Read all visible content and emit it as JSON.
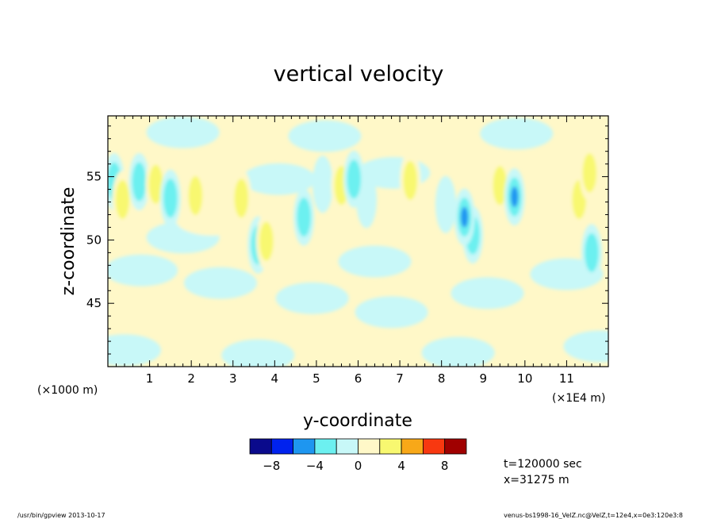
{
  "chart_data": {
    "type": "heatmap",
    "title": "vertical velocity",
    "xlabel": "y-coordinate",
    "ylabel": "z-coordinate",
    "x_scale_label": "(×1000 m)",
    "x_unit_label": "(×1E4 m)",
    "xlim": [
      0,
      12
    ],
    "ylim": [
      40,
      59.8
    ],
    "x_ticks": [
      1,
      2,
      3,
      4,
      5,
      6,
      7,
      8,
      9,
      10,
      11
    ],
    "y_ticks": [
      45,
      50,
      55
    ],
    "grid": false,
    "colorbar": {
      "levels": [
        -10,
        -8,
        -6,
        -4,
        -2,
        0,
        2,
        4,
        6,
        8,
        10
      ],
      "tick_labels": [
        "−8",
        "−4",
        "0",
        "4",
        "8"
      ],
      "tick_values": [
        -8,
        -4,
        0,
        4,
        8
      ],
      "colors": [
        "#0a0a8c",
        "#0022ee",
        "#1e96f0",
        "#6cf0f0",
        "#c8f8f8",
        "#fff8c8",
        "#f8f870",
        "#f8a818",
        "#f83810",
        "#a00000"
      ]
    },
    "annotations": [
      "t=120000 sec",
      "x=31275 m"
    ],
    "features": [
      {
        "y": 0.15,
        "z": 54.6,
        "value": -5
      },
      {
        "y": 0.35,
        "z": 53.2,
        "value": 5
      },
      {
        "y": 0.55,
        "z": 53.6,
        "value": 3
      },
      {
        "y": 0.75,
        "z": 54.6,
        "value": -5
      },
      {
        "y": 1.15,
        "z": 54.4,
        "value": 5
      },
      {
        "y": 1.5,
        "z": 53.3,
        "value": -5
      },
      {
        "y": 1.8,
        "z": 50.2,
        "value": -2
      },
      {
        "y": 2.1,
        "z": 53.5,
        "value": 5
      },
      {
        "y": 2.5,
        "z": 51.6,
        "value": 2
      },
      {
        "y": 3.2,
        "z": 53.3,
        "value": 5
      },
      {
        "y": 3.6,
        "z": 49.6,
        "value": -5
      },
      {
        "y": 3.8,
        "z": 49.9,
        "value": 5
      },
      {
        "y": 4.1,
        "z": 54.8,
        "value": -2
      },
      {
        "y": 4.7,
        "z": 51.8,
        "value": -5
      },
      {
        "y": 5.15,
        "z": 54.4,
        "value": -3
      },
      {
        "y": 5.6,
        "z": 54.3,
        "value": 5
      },
      {
        "y": 5.9,
        "z": 54.8,
        "value": -5
      },
      {
        "y": 6.2,
        "z": 53.2,
        "value": -3
      },
      {
        "y": 6.4,
        "z": 48.3,
        "value": -2
      },
      {
        "y": 6.85,
        "z": 55.3,
        "value": -2
      },
      {
        "y": 7.25,
        "z": 54.7,
        "value": 5
      },
      {
        "y": 7.5,
        "z": 52.2,
        "value": 3
      },
      {
        "y": 8.1,
        "z": 52.8,
        "value": -3
      },
      {
        "y": 8.55,
        "z": 51.8,
        "value": -7
      },
      {
        "y": 8.75,
        "z": 50.4,
        "value": -5
      },
      {
        "y": 9.25,
        "z": 54.9,
        "value": 3
      },
      {
        "y": 9.4,
        "z": 54.3,
        "value": 5
      },
      {
        "y": 9.75,
        "z": 53.4,
        "value": -7
      },
      {
        "y": 10.35,
        "z": 51.8,
        "value": 3
      },
      {
        "y": 10.9,
        "z": 54.0,
        "value": 3
      },
      {
        "y": 11.3,
        "z": 53.2,
        "value": 5
      },
      {
        "y": 11.55,
        "z": 55.3,
        "value": 5
      },
      {
        "y": 11.6,
        "z": 49.0,
        "value": -5
      },
      {
        "y": 0.8,
        "z": 47.6,
        "value": -2
      },
      {
        "y": 2.7,
        "z": 46.6,
        "value": -2
      },
      {
        "y": 4.9,
        "z": 45.4,
        "value": -2
      },
      {
        "y": 6.8,
        "z": 44.3,
        "value": -2
      },
      {
        "y": 9.1,
        "z": 45.8,
        "value": -2
      },
      {
        "y": 11.0,
        "z": 47.3,
        "value": -2
      },
      {
        "y": 0.4,
        "z": 41.3,
        "value": -2
      },
      {
        "y": 3.6,
        "z": 40.9,
        "value": -2
      },
      {
        "y": 8.4,
        "z": 41.1,
        "value": -2
      },
      {
        "y": 11.8,
        "z": 41.6,
        "value": -2
      },
      {
        "y": 1.8,
        "z": 58.5,
        "value": -2
      },
      {
        "y": 5.2,
        "z": 58.2,
        "value": -2
      },
      {
        "y": 9.8,
        "z": 58.4,
        "value": -2
      }
    ]
  },
  "footer": {
    "left": "/usr/bin/gpview   2013-10-17",
    "right": "venus-bs1998-16_VelZ.nc@VelZ,t=12e4,x=0e3:120e3:8"
  }
}
